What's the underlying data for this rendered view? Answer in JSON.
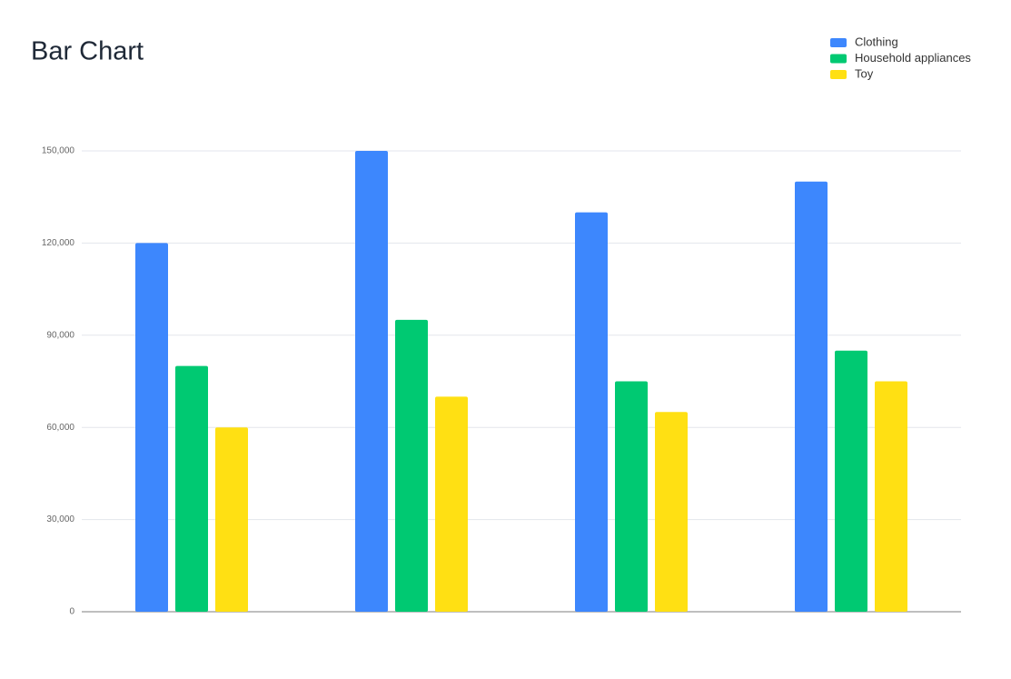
{
  "chart_data": {
    "type": "bar",
    "title": "Bar Chart",
    "categories": [
      null,
      null,
      null,
      null
    ],
    "series": [
      {
        "name": "Clothing",
        "color": "#3d87fd",
        "values": [
          120000,
          150000,
          130000,
          140000
        ]
      },
      {
        "name": "Household appliances",
        "color": "#00c972",
        "values": [
          80000,
          95000,
          75000,
          85000
        ]
      },
      {
        "name": "Toy",
        "color": "#ffe013",
        "values": [
          60000,
          70000,
          65000,
          75000
        ]
      }
    ],
    "ylim": [
      0,
      150000
    ],
    "yticks": [
      0,
      {
        "value": 30000,
        "label": "30,000"
      },
      {
        "value": 60000,
        "label": "60,000"
      },
      {
        "value": 90000,
        "label": "90,000"
      },
      {
        "value": 120000,
        "label": "120,000"
      },
      {
        "value": 150000,
        "label": "150,000"
      }
    ],
    "grid": true,
    "legend": "top-right"
  }
}
